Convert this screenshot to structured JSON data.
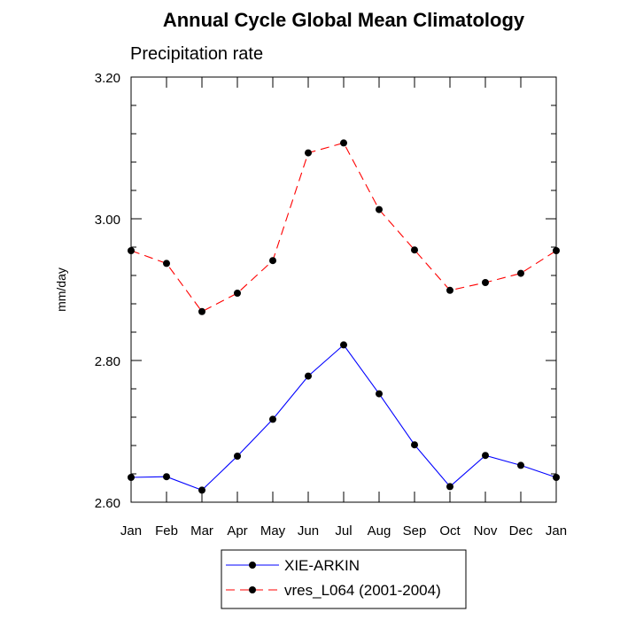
{
  "chart_data": {
    "type": "line",
    "title": "Annual Cycle Global Mean Climatology",
    "subtitle": "Precipitation rate",
    "xlabel": "",
    "ylabel": "mm/day",
    "categories": [
      "Jan",
      "Feb",
      "Mar",
      "Apr",
      "May",
      "Jun",
      "Jul",
      "Aug",
      "Sep",
      "Oct",
      "Nov",
      "Dec",
      "Jan"
    ],
    "ylim": [
      2.6,
      3.2
    ],
    "yticks": [
      2.6,
      2.8,
      3.0,
      3.2
    ],
    "ytick_labels": [
      "2.60",
      "2.80",
      "3.00",
      "3.20"
    ],
    "grid": false,
    "legend_position": "bottom",
    "series": [
      {
        "name": "XIE-ARKIN",
        "color": "#0000ff",
        "dash": "solid",
        "values": [
          2.635,
          2.636,
          2.617,
          2.665,
          2.717,
          2.778,
          2.822,
          2.753,
          2.681,
          2.622,
          2.666,
          2.652,
          2.635
        ]
      },
      {
        "name": "vres_L064 (2001-2004)",
        "color": "#ff0000",
        "dash": "dashed",
        "values": [
          2.955,
          2.937,
          2.869,
          2.895,
          2.941,
          3.093,
          3.107,
          3.013,
          2.956,
          2.899,
          2.91,
          2.923,
          2.955
        ]
      }
    ]
  }
}
